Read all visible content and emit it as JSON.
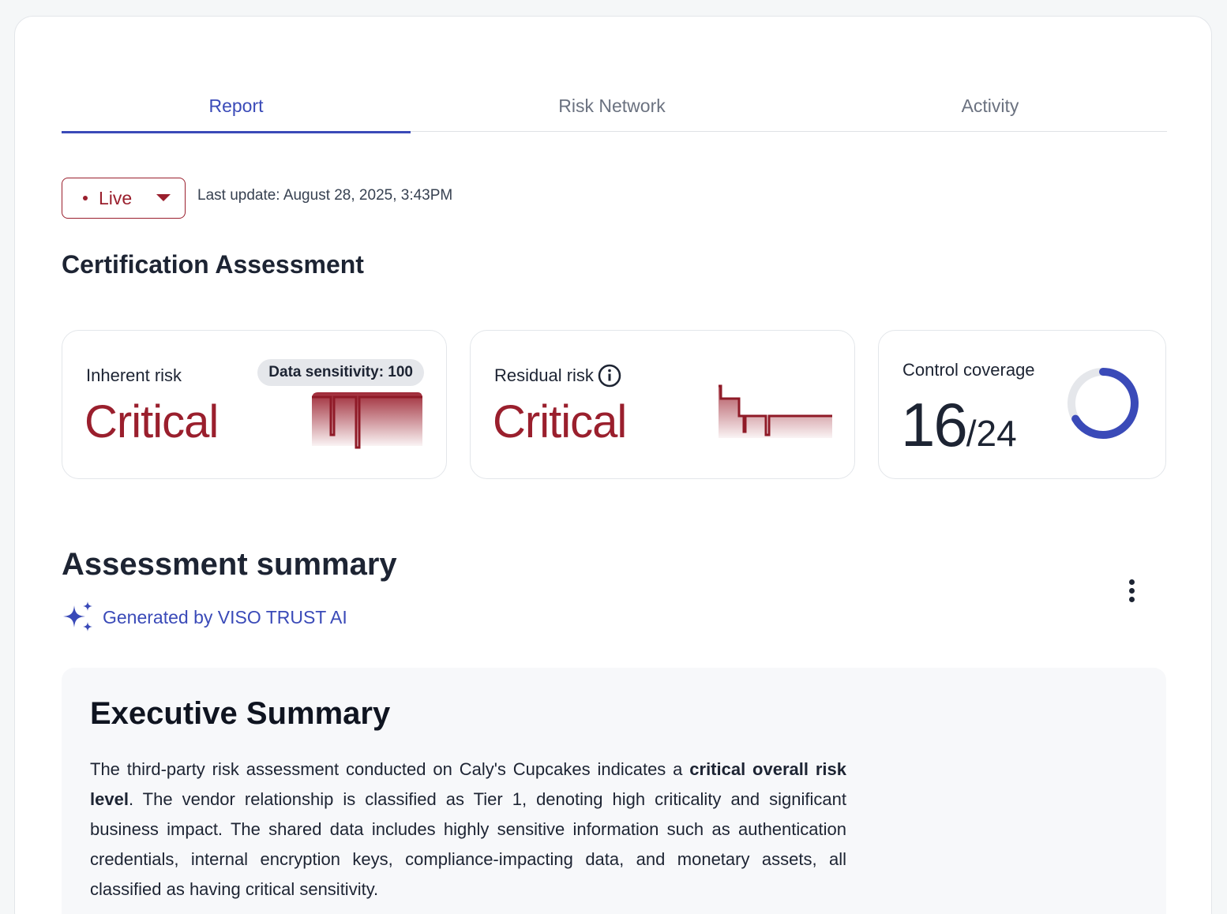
{
  "tabs": [
    {
      "label": "Report",
      "active": true
    },
    {
      "label": "Risk Network",
      "active": false
    },
    {
      "label": "Activity",
      "active": false
    }
  ],
  "status": {
    "live_label": "Live",
    "last_update": "Last update: August 28, 2025, 3:43PM"
  },
  "certification": {
    "title": "Certification Assessment",
    "inherent": {
      "label": "Inherent risk",
      "value": "Critical",
      "badge": "Data sensitivity: 100"
    },
    "residual": {
      "label": "Residual risk",
      "value": "Critical"
    },
    "coverage": {
      "label": "Control coverage",
      "covered": "16",
      "total": "/24",
      "fraction": 0.667
    }
  },
  "summary": {
    "title": "Assessment summary",
    "generated_by": "Generated by VISO TRUST AI",
    "exec_title": "Executive Summary",
    "body_1": "The third-party risk assessment conducted on Caly's Cupcakes indicates a ",
    "body_bold": "critical overall risk level",
    "body_2": ". The vendor relationship is classified as Tier 1, denoting high criticality and significant business impact. The shared data includes highly sensitive information such as authentication credentials, internal encryption keys, compliance-impacting data, and monetary assets, all classified as having critical sensitivity."
  },
  "colors": {
    "accent": "#3a4ab8",
    "critical": "#9a1f2d",
    "text": "#1d2433"
  }
}
